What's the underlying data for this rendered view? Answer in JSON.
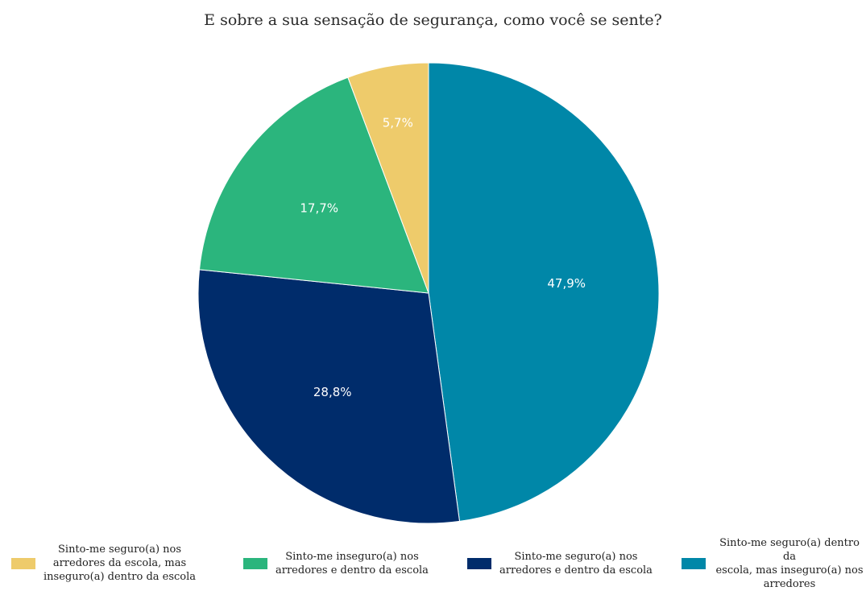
{
  "chart_data": {
    "type": "pie",
    "title": "E sobre a sua sensação de segurança, como você se sente?",
    "legend_position": "bottom",
    "slices": [
      {
        "name": "Sinto-me seguro(a) dentro da escola, mas inseguro(a) nos arredores",
        "value": 47.9,
        "label": "47,9%",
        "color": "#0087a8"
      },
      {
        "name": "Sinto-me seguro(a) nos arredores e dentro da escola",
        "value": 28.8,
        "label": "28,8%",
        "color": "#002c6b"
      },
      {
        "name": "Sinto-me inseguro(a) nos arredores e dentro da escola",
        "value": 17.7,
        "label": "17,7%",
        "color": "#2bb57d"
      },
      {
        "name": "Sinto-me seguro(a) nos arredores da escola, mas inseguro(a) dentro da escola",
        "value": 5.7,
        "label": "5,7%",
        "color": "#eecb6b"
      }
    ],
    "legend": [
      {
        "lines": [
          "Sinto-me seguro(a) nos",
          "arredores da escola, mas",
          "inseguro(a) dentro da escola"
        ],
        "color": "#eecb6b"
      },
      {
        "lines": [
          "Sinto-me inseguro(a) nos",
          "arredores e dentro da escola"
        ],
        "color": "#2bb57d"
      },
      {
        "lines": [
          "Sinto-me seguro(a) nos",
          "arredores e dentro da escola"
        ],
        "color": "#002c6b"
      },
      {
        "lines": [
          "Sinto-me seguro(a) dentro da",
          "escola, mas inseguro(a) nos",
          "arredores"
        ],
        "color": "#0087a8"
      }
    ]
  }
}
